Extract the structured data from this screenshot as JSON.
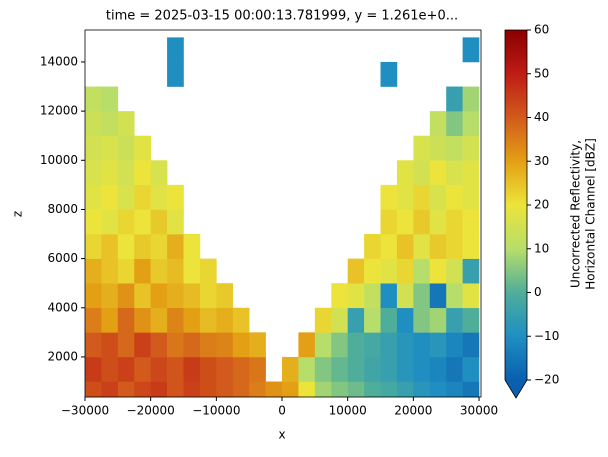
{
  "chart_data": {
    "type": "heatmap",
    "title": "time = 2025-03-15 00:00:13.781999, y = 1.261e+0...",
    "x_label": "x",
    "y_label": "z",
    "colorbar_label": [
      "Uncorrected Reflectivity,",
      "Horizontal Channel [dBZ]"
    ],
    "xlim": [
      -30000,
      30300
    ],
    "ylim": [
      370,
      15300
    ],
    "xticks": [
      {
        "value": -30000,
        "label": "−30000"
      },
      {
        "value": -20000,
        "label": "−20000"
      },
      {
        "value": -10000,
        "label": "−10000"
      },
      0,
      10000,
      20000,
      30000
    ],
    "yticks": [
      2000,
      4000,
      6000,
      8000,
      10000,
      12000,
      14000
    ],
    "clim": [
      -20,
      60
    ],
    "colorbar_ticks": [
      {
        "value": -20,
        "label": "−20"
      },
      {
        "value": -10,
        "label": "−10"
      },
      0,
      10,
      20,
      30,
      40,
      50,
      60
    ],
    "colormap": [
      "#0a5fae",
      "#1f8fc2",
      "#4fae9a",
      "#b7de6a",
      "#ece43a",
      "#e3a014",
      "#d25a1c",
      "#be1c14",
      "#8a0000"
    ],
    "extend": "min",
    "x_bins": [
      -30000,
      -27500,
      -25000,
      -22500,
      -20000,
      -17500,
      -15000,
      -12500,
      -10000,
      -7500,
      -5000,
      -2500,
      0,
      2500,
      5000,
      7500,
      10000,
      12500,
      15000,
      17500,
      20000,
      22500,
      25000,
      27500,
      30000
    ],
    "z_bins": [
      370,
      1000,
      2000,
      3000,
      4000,
      5000,
      6000,
      7000,
      8000,
      9000,
      10000,
      11000,
      12000,
      13000,
      14000,
      15000
    ],
    "values": [
      [
        42,
        44,
        40,
        43,
        45,
        41,
        44,
        42,
        40,
        38,
        35,
        32,
        30,
        20,
        8,
        5,
        3,
        0,
        -2,
        -5,
        -8,
        -10,
        -12,
        -15
      ],
      [
        45,
        42,
        44,
        40,
        43,
        41,
        45,
        42,
        40,
        38,
        36,
        null,
        28,
        10,
        5,
        2,
        0,
        -3,
        -5,
        -8,
        -10,
        -12,
        -15,
        -10
      ],
      [
        40,
        42,
        38,
        44,
        40,
        36,
        38,
        35,
        34,
        30,
        28,
        null,
        null,
        30,
        10,
        5,
        0,
        -2,
        -5,
        -8,
        -10,
        -8,
        -12,
        -15
      ],
      [
        35,
        30,
        38,
        32,
        28,
        34,
        30,
        26,
        28,
        25,
        null,
        null,
        null,
        null,
        22,
        15,
        -5,
        10,
        0,
        -10,
        5,
        8,
        -5,
        0
      ],
      [
        30,
        28,
        32,
        25,
        30,
        28,
        26,
        22,
        24,
        null,
        null,
        null,
        null,
        null,
        null,
        20,
        18,
        12,
        -10,
        15,
        5,
        -15,
        10,
        18
      ],
      [
        28,
        25,
        22,
        30,
        24,
        26,
        20,
        22,
        null,
        null,
        null,
        null,
        null,
        null,
        null,
        null,
        25,
        20,
        18,
        22,
        10,
        20,
        15,
        -5
      ],
      [
        22,
        25,
        20,
        24,
        22,
        28,
        20,
        null,
        null,
        null,
        null,
        null,
        null,
        null,
        null,
        null,
        null,
        22,
        20,
        25,
        18,
        24,
        22,
        20
      ],
      [
        20,
        18,
        22,
        20,
        24,
        18,
        null,
        null,
        null,
        null,
        null,
        null,
        null,
        null,
        null,
        null,
        null,
        null,
        22,
        20,
        24,
        18,
        22,
        20
      ],
      [
        18,
        20,
        16,
        22,
        18,
        20,
        null,
        null,
        null,
        null,
        null,
        null,
        null,
        null,
        null,
        null,
        null,
        null,
        20,
        18,
        22,
        16,
        20,
        18
      ],
      [
        16,
        18,
        15,
        20,
        16,
        null,
        null,
        null,
        null,
        null,
        null,
        null,
        null,
        null,
        null,
        null,
        null,
        null,
        null,
        18,
        15,
        20,
        16,
        18
      ],
      [
        15,
        16,
        14,
        18,
        null,
        null,
        null,
        null,
        null,
        null,
        null,
        null,
        null,
        null,
        null,
        null,
        null,
        null,
        null,
        null,
        16,
        14,
        12,
        15
      ],
      [
        14,
        12,
        15,
        null,
        null,
        null,
        null,
        null,
        null,
        null,
        null,
        null,
        null,
        null,
        null,
        null,
        null,
        null,
        null,
        null,
        null,
        12,
        5,
        10
      ],
      [
        12,
        10,
        null,
        null,
        null,
        null,
        null,
        null,
        null,
        null,
        null,
        null,
        null,
        null,
        null,
        null,
        null,
        null,
        null,
        null,
        null,
        null,
        -5,
        8
      ],
      [
        null,
        null,
        null,
        null,
        null,
        -10,
        null,
        null,
        null,
        null,
        null,
        null,
        null,
        null,
        null,
        null,
        null,
        null,
        -10,
        null,
        null,
        null,
        null,
        null
      ],
      [
        null,
        null,
        null,
        null,
        null,
        -10,
        null,
        null,
        null,
        null,
        null,
        null,
        null,
        null,
        null,
        null,
        null,
        null,
        null,
        null,
        null,
        null,
        null,
        -10
      ]
    ]
  }
}
